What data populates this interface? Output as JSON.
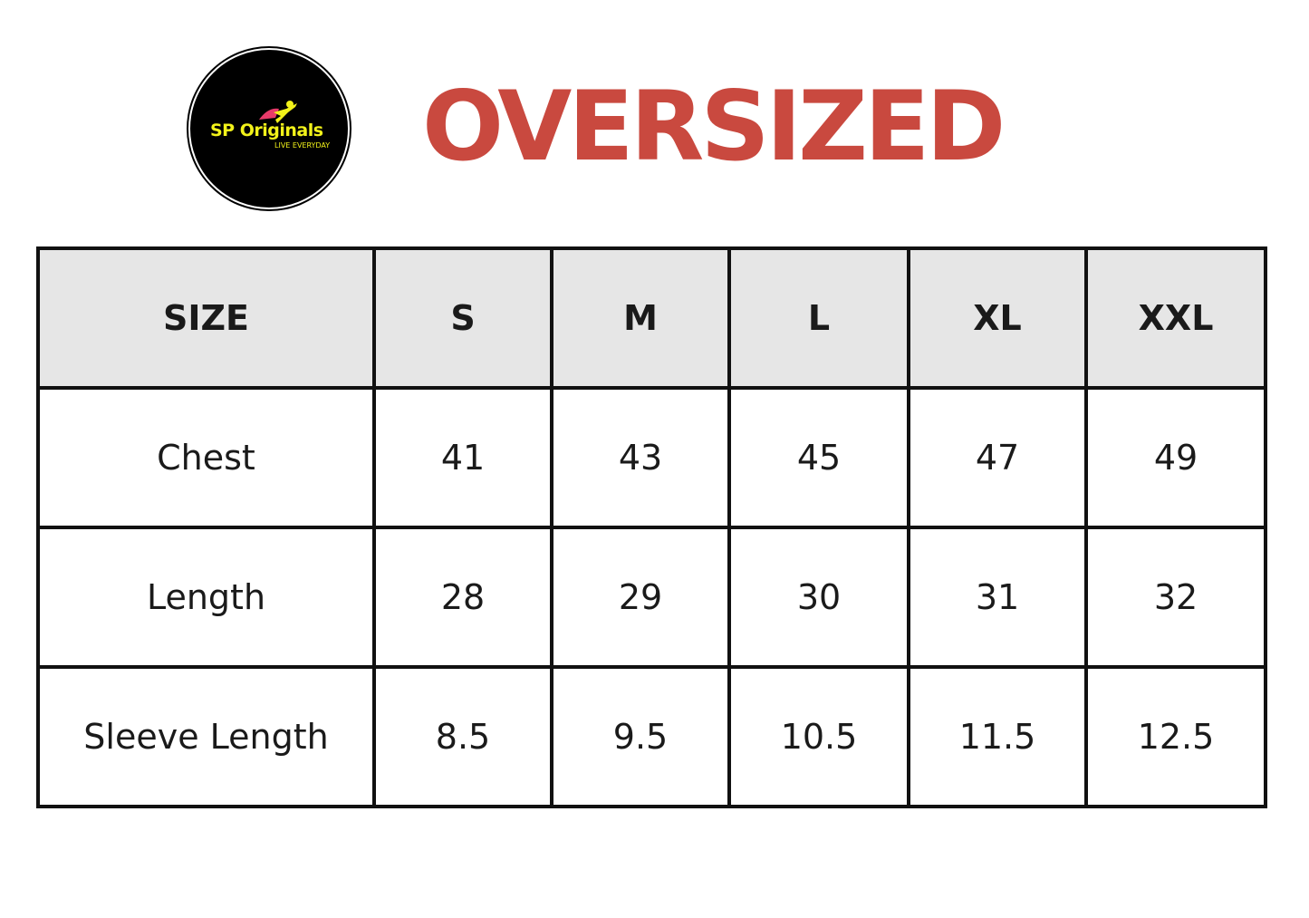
{
  "logo": {
    "brand": "SP Originals",
    "tagline": "LIVE EVERYDAY",
    "colors": {
      "background": "#000000",
      "text": "#f2f21a",
      "cape": "#e83a6a"
    }
  },
  "title": "OVERSIZED",
  "title_color": "#c9493f",
  "table": {
    "headers": [
      "SIZE",
      "S",
      "M",
      "L",
      "XL",
      "XXL"
    ],
    "rows": [
      [
        "Chest",
        "41",
        "43",
        "45",
        "47",
        "49"
      ],
      [
        "Length",
        "28",
        "29",
        "30",
        "31",
        "32"
      ],
      [
        "Sleeve Length",
        "8.5",
        "9.5",
        "10.5",
        "11.5",
        "12.5"
      ]
    ]
  }
}
